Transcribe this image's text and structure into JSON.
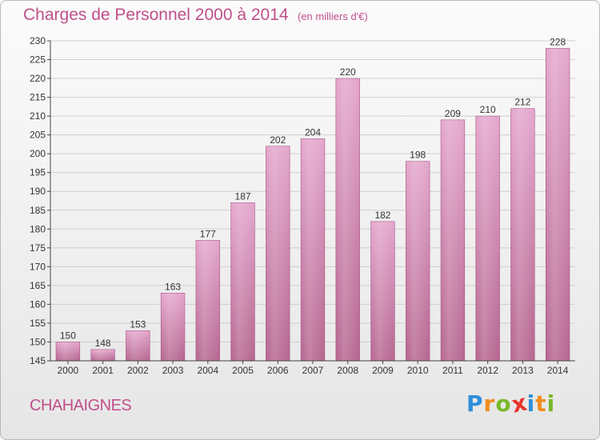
{
  "header": {
    "title": "Charges de Personnel 2000 à 2014",
    "subtitle": "(en milliers d'€)"
  },
  "footer": {
    "commune": "CHAHAIGNES",
    "logo": {
      "letters": [
        "P",
        "r",
        "o",
        "x",
        "i",
        "t",
        "i"
      ],
      "colors": [
        "#2f8fd8",
        "#f08c1e",
        "#79b829",
        "#e8332a",
        "#2f8fd8",
        "#f08c1e",
        "#79b829"
      ]
    }
  },
  "chart_data": {
    "type": "bar",
    "categories": [
      "2000",
      "2001",
      "2002",
      "2003",
      "2004",
      "2005",
      "2006",
      "2007",
      "2008",
      "2009",
      "2010",
      "2011",
      "2012",
      "2013",
      "2014"
    ],
    "values": [
      150,
      148,
      153,
      163,
      177,
      187,
      202,
      204,
      220,
      182,
      198,
      209,
      210,
      212,
      228
    ],
    "ylim": [
      145,
      230
    ],
    "yticks": [
      145,
      150,
      155,
      160,
      165,
      170,
      175,
      180,
      185,
      190,
      195,
      200,
      205,
      210,
      215,
      220,
      225,
      230
    ],
    "grid": true,
    "colors": {
      "bar_top": "#e4a6cc",
      "bar_bottom": "#b5658f",
      "bar_edge": "#a85584",
      "grid": "#cfcfcf",
      "axis": "#444444"
    }
  }
}
